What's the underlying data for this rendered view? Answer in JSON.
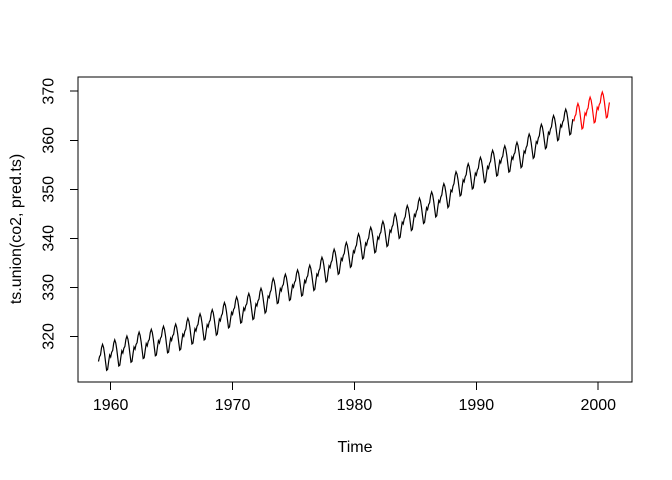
{
  "figure": {
    "background_color": "#ffffff",
    "title": ""
  },
  "chart_data": {
    "type": "line",
    "title": "",
    "xlabel": "Time",
    "ylabel": "ts.union(co2, pred.ts)",
    "x_ticks": [
      1960,
      1970,
      1980,
      1990,
      2000
    ],
    "y_ticks": [
      320,
      330,
      340,
      350,
      360,
      370
    ],
    "xlim": [
      1957.32,
      2002.77
    ],
    "ylim": [
      310.7,
      372.9
    ],
    "grid": false,
    "legend": "none",
    "axis_color": "#000000",
    "text_color": "#000000",
    "sampling": "monthly",
    "seasonal_cycle_by_month": [
      -0.5,
      0.4,
      0.7,
      2.1,
      2.7,
      2.0,
      0.6,
      -1.2,
      -2.9,
      -2.8,
      -1.3,
      0.0
    ],
    "series": [
      {
        "name": "co2",
        "color": "#000000",
        "start_year": 1959,
        "n_months": 468,
        "annual_means": [
          315.83,
          316.75,
          317.49,
          318.3,
          318.83,
          319.48,
          319.87,
          321.21,
          322.02,
          322.89,
          324.46,
          325.52,
          326.16,
          327.29,
          329.51,
          330.08,
          330.99,
          331.98,
          333.73,
          335.34,
          336.68,
          338.52,
          339.76,
          340.96,
          342.61,
          344.25,
          345.73,
          346.97,
          348.75,
          351.31,
          352.75,
          354.04,
          355.48,
          356.29,
          356.99,
          358.88,
          360.88,
          362.64,
          363.82
        ]
      },
      {
        "name": "pred.ts",
        "color": "#ff0000",
        "start_year": 1998,
        "n_months": 36,
        "annual_means": [
          365.0,
          366.3,
          367.3
        ]
      }
    ]
  }
}
